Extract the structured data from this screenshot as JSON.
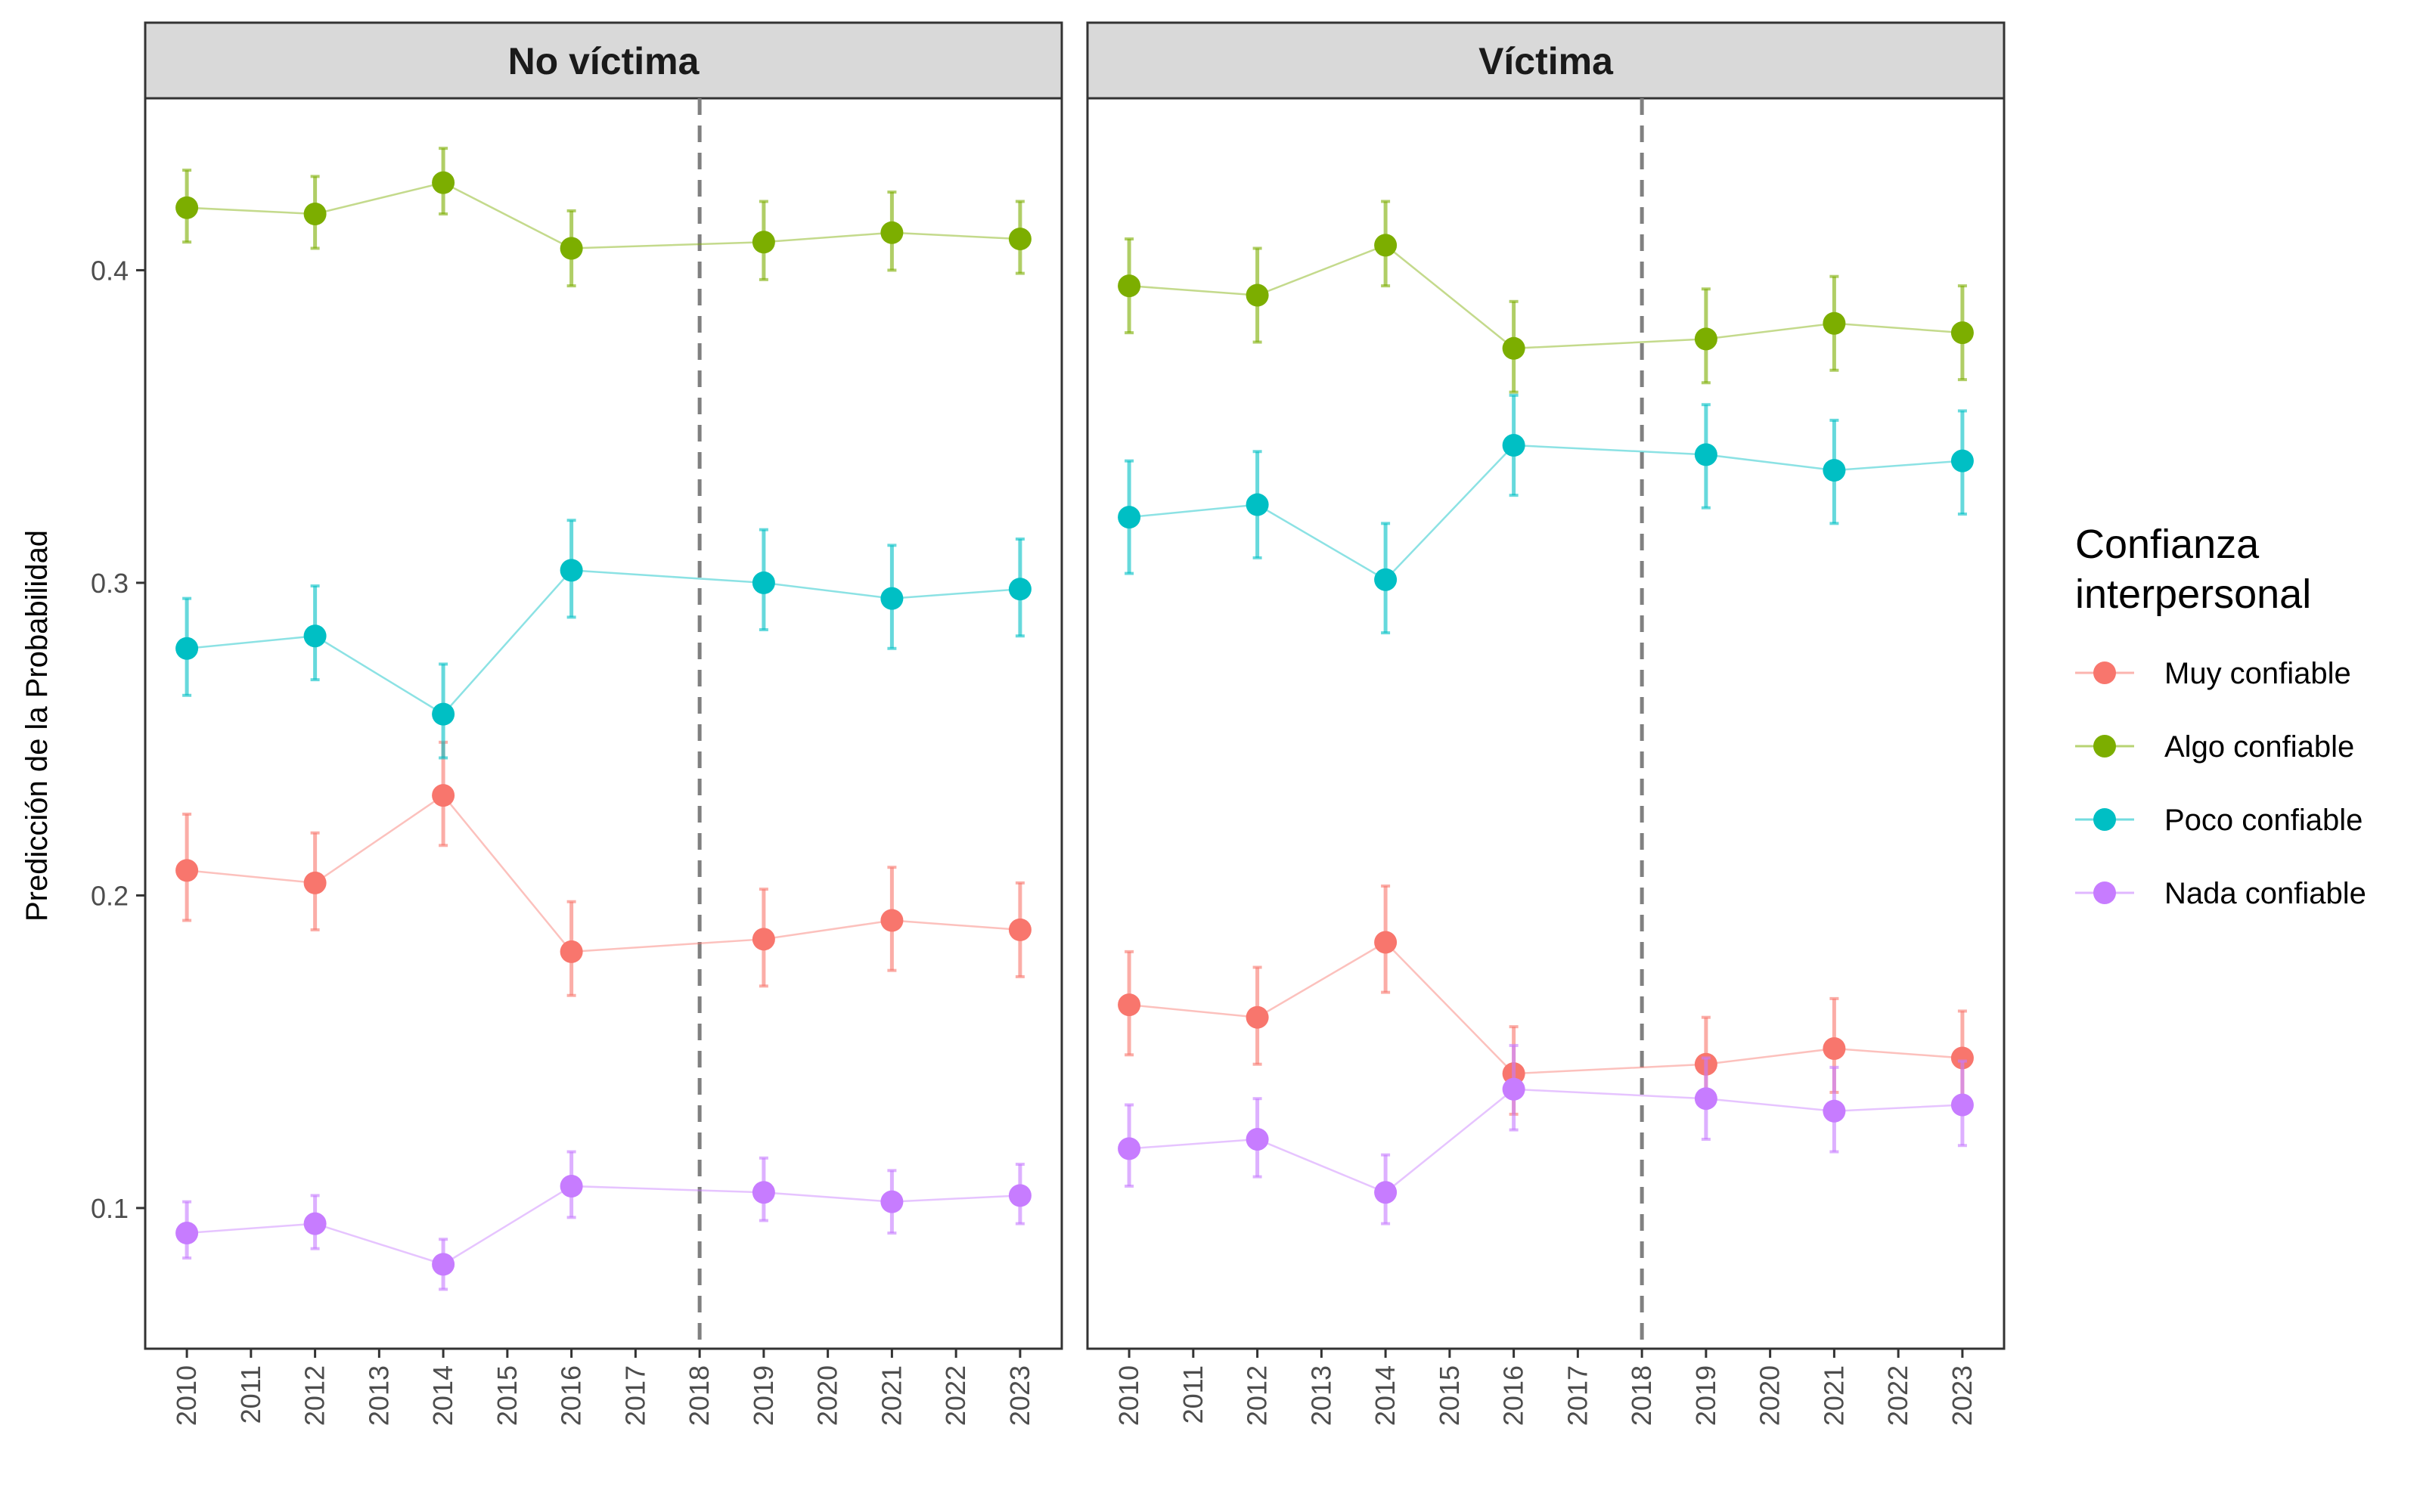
{
  "chart_data": {
    "type": "line",
    "ylabel": "Predicción de la Probabilidad",
    "xlabel": "",
    "ylim": [
      0.055,
      0.455
    ],
    "yticks": [
      0.1,
      0.2,
      0.3,
      0.4
    ],
    "ytick_labels": [
      "0.1",
      "0.2",
      "0.3",
      "0.4"
    ],
    "x_ticks": [
      2010,
      2011,
      2012,
      2013,
      2014,
      2015,
      2016,
      2017,
      2018,
      2019,
      2020,
      2021,
      2022,
      2023
    ],
    "x_tick_labels": [
      "2010",
      "2011",
      "2012",
      "2013",
      "2014",
      "2015",
      "2016",
      "2017",
      "2018",
      "2019",
      "2020",
      "2021",
      "2022",
      "2023"
    ],
    "xlim": [
      2009.35,
      2023.65
    ],
    "reference_line_x": 2018,
    "grid": false,
    "legend": {
      "title_lines": [
        "Confianza",
        "interpersonal"
      ],
      "placement": "right"
    },
    "series": [
      {
        "name": "Muy confiable",
        "color": "#F8766D"
      },
      {
        "name": "Algo confiable",
        "color": "#7CAE00"
      },
      {
        "name": "Poco confiable",
        "color": "#00BFC4"
      },
      {
        "name": "Nada confiable",
        "color": "#C77CFF"
      }
    ],
    "panels": [
      {
        "title": "No víctima",
        "years": [
          2010,
          2012,
          2014,
          2016,
          2019,
          2021,
          2023
        ],
        "series": [
          {
            "name": "Muy confiable",
            "y": [
              0.208,
              0.204,
              0.232,
              0.182,
              0.186,
              0.192,
              0.189
            ],
            "low": [
              0.192,
              0.189,
              0.216,
              0.168,
              0.171,
              0.176,
              0.174
            ],
            "high": [
              0.226,
              0.22,
              0.249,
              0.198,
              0.202,
              0.209,
              0.204
            ]
          },
          {
            "name": "Algo confiable",
            "y": [
              0.42,
              0.418,
              0.428,
              0.407,
              0.409,
              0.412,
              0.41
            ],
            "low": [
              0.409,
              0.407,
              0.418,
              0.395,
              0.397,
              0.4,
              0.399
            ],
            "high": [
              0.432,
              0.43,
              0.439,
              0.419,
              0.422,
              0.425,
              0.422
            ]
          },
          {
            "name": "Poco confiable",
            "y": [
              0.279,
              0.283,
              0.258,
              0.304,
              0.3,
              0.295,
              0.298
            ],
            "low": [
              0.264,
              0.269,
              0.244,
              0.289,
              0.285,
              0.279,
              0.283
            ],
            "high": [
              0.295,
              0.299,
              0.274,
              0.32,
              0.317,
              0.312,
              0.314
            ]
          },
          {
            "name": "Nada confiable",
            "y": [
              0.092,
              0.095,
              0.082,
              0.107,
              0.105,
              0.102,
              0.104
            ],
            "low": [
              0.084,
              0.087,
              0.074,
              0.097,
              0.096,
              0.092,
              0.095
            ],
            "high": [
              0.102,
              0.104,
              0.09,
              0.118,
              0.116,
              0.112,
              0.114
            ]
          }
        ]
      },
      {
        "title": "Víctima",
        "years": [
          2010,
          2012,
          2014,
          2016,
          2019,
          2021,
          2023
        ],
        "series": [
          {
            "name": "Muy confiable",
            "y": [
              0.165,
              0.161,
              0.185,
              0.143,
              0.146,
              0.151,
              0.148
            ],
            "low": [
              0.149,
              0.146,
              0.169,
              0.13,
              0.133,
              0.137,
              0.134
            ],
            "high": [
              0.182,
              0.177,
              0.203,
              0.158,
              0.161,
              0.167,
              0.163
            ]
          },
          {
            "name": "Algo confiable",
            "y": [
              0.395,
              0.392,
              0.408,
              0.375,
              0.378,
              0.383,
              0.38
            ],
            "low": [
              0.38,
              0.377,
              0.395,
              0.361,
              0.364,
              0.368,
              0.365
            ],
            "high": [
              0.41,
              0.407,
              0.422,
              0.39,
              0.394,
              0.398,
              0.395
            ]
          },
          {
            "name": "Poco confiable",
            "y": [
              0.321,
              0.325,
              0.301,
              0.344,
              0.341,
              0.336,
              0.339
            ],
            "low": [
              0.303,
              0.308,
              0.284,
              0.328,
              0.324,
              0.319,
              0.322
            ],
            "high": [
              0.339,
              0.342,
              0.319,
              0.36,
              0.357,
              0.352,
              0.355
            ]
          },
          {
            "name": "Nada confiable",
            "y": [
              0.119,
              0.122,
              0.105,
              0.138,
              0.135,
              0.131,
              0.133
            ],
            "low": [
              0.107,
              0.11,
              0.095,
              0.125,
              0.122,
              0.118,
              0.12
            ],
            "high": [
              0.133,
              0.135,
              0.117,
              0.152,
              0.148,
              0.145,
              0.147
            ]
          }
        ]
      }
    ]
  }
}
